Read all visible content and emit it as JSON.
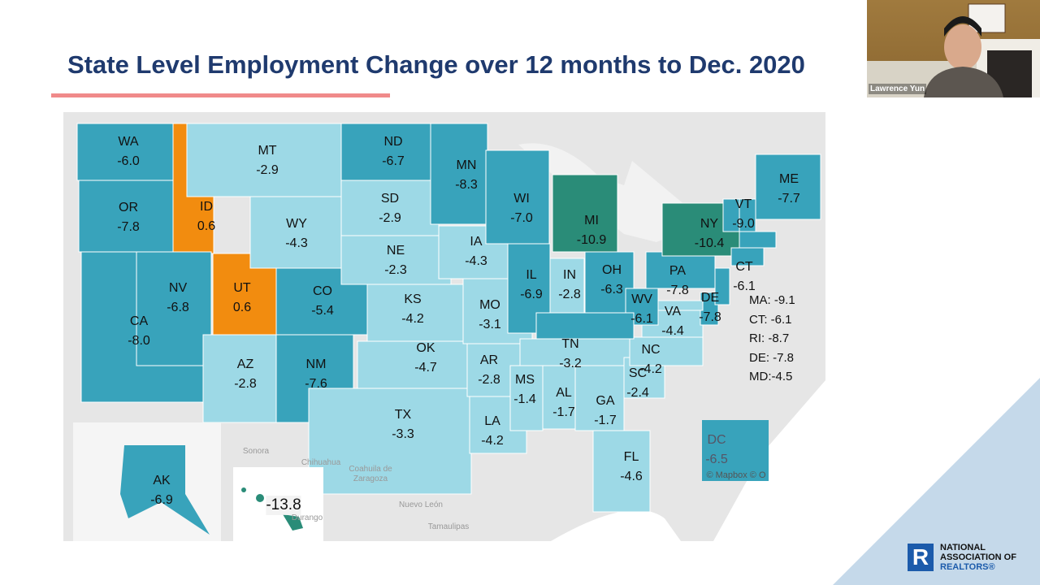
{
  "slide": {
    "title": "State Level Employment Change over 12 months to Dec. 2020"
  },
  "color_scale": {
    "positive": "#f28c0f",
    "mild_decline": "#9dd9e6",
    "moderate_decline": "#38a3bb",
    "severe_decline": "#2a8c78",
    "land": "#e6e6e6",
    "water": "#ffffff"
  },
  "states": [
    {
      "abbr": "WA",
      "value": "-6.0"
    },
    {
      "abbr": "OR",
      "value": "-7.8"
    },
    {
      "abbr": "CA",
      "value": "-8.0"
    },
    {
      "abbr": "ID",
      "value": "0.6"
    },
    {
      "abbr": "NV",
      "value": "-6.8"
    },
    {
      "abbr": "UT",
      "value": "0.6"
    },
    {
      "abbr": "AZ",
      "value": "-2.8"
    },
    {
      "abbr": "MT",
      "value": "-2.9"
    },
    {
      "abbr": "WY",
      "value": "-4.3"
    },
    {
      "abbr": "CO",
      "value": "-5.4"
    },
    {
      "abbr": "NM",
      "value": "-7.6"
    },
    {
      "abbr": "ND",
      "value": "-6.7"
    },
    {
      "abbr": "SD",
      "value": "-2.9"
    },
    {
      "abbr": "NE",
      "value": "-2.3"
    },
    {
      "abbr": "KS",
      "value": "-4.2"
    },
    {
      "abbr": "OK",
      "value": "-4.7"
    },
    {
      "abbr": "TX",
      "value": "-3.3"
    },
    {
      "abbr": "MN",
      "value": "-8.3"
    },
    {
      "abbr": "IA",
      "value": "-4.3"
    },
    {
      "abbr": "MO",
      "value": "-3.1"
    },
    {
      "abbr": "AR",
      "value": "-2.8"
    },
    {
      "abbr": "LA",
      "value": "-4.2"
    },
    {
      "abbr": "WI",
      "value": "-7.0"
    },
    {
      "abbr": "IL",
      "value": "-6.9"
    },
    {
      "abbr": "IN",
      "value": "-2.8"
    },
    {
      "abbr": "MI",
      "value": "-10.9"
    },
    {
      "abbr": "OH",
      "value": "-6.3"
    },
    {
      "abbr": "TN",
      "value": "-3.2"
    },
    {
      "abbr": "MS",
      "value": "-1.4"
    },
    {
      "abbr": "AL",
      "value": "-1.7"
    },
    {
      "abbr": "GA",
      "value": "-1.7"
    },
    {
      "abbr": "FL",
      "value": "-4.6"
    },
    {
      "abbr": "SC",
      "value": "-2.4"
    },
    {
      "abbr": "NC",
      "value": "-4.2"
    },
    {
      "abbr": "VA",
      "value": "-4.4"
    },
    {
      "abbr": "WV",
      "value": "-6.1"
    },
    {
      "abbr": "PA",
      "value": "-7.8"
    },
    {
      "abbr": "NY",
      "value": "-10.4"
    },
    {
      "abbr": "VT",
      "value": "-9.0"
    },
    {
      "abbr": "ME",
      "value": "-7.7"
    },
    {
      "abbr": "CT",
      "value": "-6.1"
    },
    {
      "abbr": "DE",
      "value": "-7.8"
    },
    {
      "abbr": "AK",
      "value": "-6.9"
    },
    {
      "abbr": "HI",
      "value": "-13.8",
      "hide_abbr": true
    },
    {
      "abbr": "DC",
      "value": "-6.5"
    }
  ],
  "legend_lines": [
    "MA: -9.1",
    "CT: -6.1",
    "RI: -8.7",
    "DE: -7.8",
    "MD:-4.5"
  ],
  "basemap_labels": [
    "Sonora",
    "Chihuahua",
    "Coahuila de Zaragoza",
    "Nuevo León",
    "Tamaulipas",
    "Durango"
  ],
  "attribution": "© Mapbox © O",
  "presenter": {
    "name": "Lawrence Yun"
  },
  "logo": {
    "line1": "NATIONAL",
    "line2": "ASSOCIATION OF",
    "line3": "REALTORS®",
    "mark": "R"
  },
  "slide_accent": {
    "underline": "#f08a8a",
    "corner": "#c5d9ea"
  }
}
